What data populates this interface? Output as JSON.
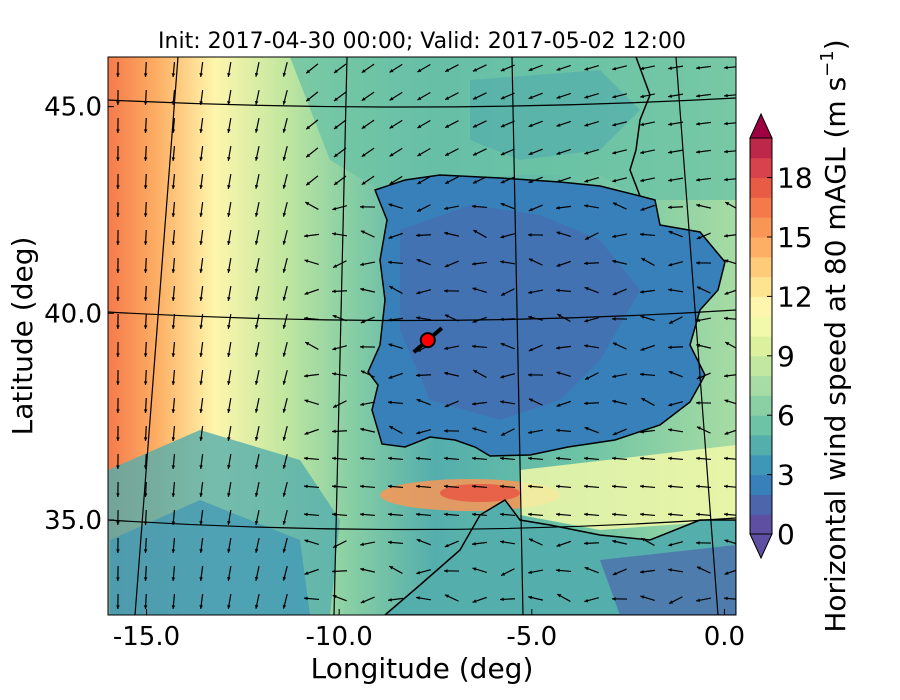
{
  "chart_data": {
    "type": "heatmap",
    "title": "Init: 2017-04-30 00:00; Valid: 2017-05-02 12:00",
    "xlabel": "Longitude (deg)",
    "ylabel": "Latitude (deg)",
    "xlim": [
      -16.0,
      0.3
    ],
    "ylim": [
      32.7,
      46.2
    ],
    "x_ticks": [
      {
        "value": -15.0,
        "label": "-15.0"
      },
      {
        "value": -10.0,
        "label": "-10.0"
      },
      {
        "value": -5.0,
        "label": "-5.0"
      },
      {
        "value": 0.0,
        "label": "0.0"
      }
    ],
    "y_ticks": [
      {
        "value": 35.0,
        "label": "35.0"
      },
      {
        "value": 40.0,
        "label": "40.0"
      },
      {
        "value": 45.0,
        "label": "45.0"
      }
    ],
    "grid": true,
    "colorbar": {
      "label": "Horizontal wind speed at 80 mAGL (m s",
      "label_exponent": "−1",
      "label_close": ")",
      "range": [
        0,
        20
      ],
      "extend": "both",
      "levels": [
        0,
        1,
        2,
        3,
        4,
        5,
        6,
        7,
        8,
        9,
        10,
        11,
        12,
        13,
        14,
        15,
        16,
        17,
        18,
        19,
        20
      ],
      "ticks": [
        {
          "value": 0,
          "label": "0"
        },
        {
          "value": 3,
          "label": "3"
        },
        {
          "value": 6,
          "label": "6"
        },
        {
          "value": 9,
          "label": "9"
        },
        {
          "value": 12,
          "label": "12"
        },
        {
          "value": 15,
          "label": "15"
        },
        {
          "value": 18,
          "label": "18"
        }
      ],
      "colors": [
        "#5e4fa2",
        "#4b66ad",
        "#3880b9",
        "#3f97b7",
        "#54aeac",
        "#6cc3a5",
        "#8ad0a4",
        "#a7dca4",
        "#c2e7a0",
        "#dcf19e",
        "#f2f9a9",
        "#fef6ac",
        "#fee391",
        "#fdcb79",
        "#fdb065",
        "#f99656",
        "#f57a4b",
        "#e85c46",
        "#d7424d",
        "#bd274a",
        "#9e0142"
      ],
      "under_color": "#5e4fa2",
      "over_color": "#9e0142"
    },
    "site_marker": {
      "lon": -7.7,
      "lat": 39.35,
      "color": "#ff0000"
    }
  }
}
